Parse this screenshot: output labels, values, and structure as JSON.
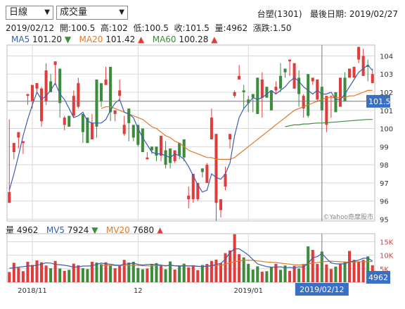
{
  "controls": {
    "period": "日線",
    "indicator": "成交量",
    "dropdown_glyph": "▼"
  },
  "header": {
    "stock": "台塑(1301)",
    "last_date_label": "最後日期:",
    "last_date": "2019/02/27"
  },
  "info": {
    "date": "2019/02/12",
    "open_label": "開:",
    "open": "100.5",
    "high_label": "高:",
    "high": "102",
    "low_label": "低:",
    "low": "100.5",
    "close_label": "收:",
    "close": "101.5",
    "vol_label": "量:",
    "vol": "4962",
    "chg_label": "漲跌:",
    "chg": "1.50"
  },
  "ma": {
    "ma5_label": "MA5",
    "ma5": "101.20",
    "ma5_arrow": "▼",
    "ma20_label": "MA20",
    "ma20": "101.42",
    "ma20_arrow": "▲",
    "ma60_label": "MA60",
    "ma60": "100.28",
    "ma60_arrow": "▲"
  },
  "vol_info": {
    "label": "量",
    "value": "4962",
    "mv5_label": "MV5",
    "mv5": "7924",
    "mv5_arrow": "▼",
    "mv20_label": "MV20",
    "mv20": "7680",
    "mv20_arrow": "▲"
  },
  "watermark": "©Yahoo奇摩股市",
  "cursor": {
    "price_tag": "101.5",
    "vol_tag": "4962",
    "date_tag": "2019/02/12"
  },
  "colors": {
    "up": "#e03c3c",
    "down": "#3d8b3d",
    "ma5": "#3a5fb0",
    "ma20": "#e07a2a",
    "ma60": "#3d8b3d",
    "tag_bg": "#3a6fc4",
    "grid": "#d8d8d8",
    "axis_red": "#e03c3c"
  },
  "chart_data": [
    {
      "type": "candlestick",
      "yticks": [
        "104",
        "103",
        "102",
        "101",
        "100",
        "99",
        "98",
        "97",
        "96",
        "95"
      ],
      "ylim": [
        94.9,
        104.6
      ],
      "xticks": [
        "2018/11",
        "12",
        "2019/01"
      ],
      "candles": [
        [
          95.9,
          96.5,
          100.5,
          99.2
        ],
        [
          98.7,
          99.2,
          98.6,
          98.3
        ],
        [
          99.5,
          99.8,
          99.5,
          98.9
        ],
        [
          99.2,
          99.3,
          98.8,
          98.6
        ],
        [
          101.8,
          101.9,
          101.5,
          101.3
        ],
        [
          101.5,
          102.4,
          101.3,
          101.1
        ],
        [
          102.2,
          102.5,
          102.4,
          102.0
        ],
        [
          100.4,
          102.2,
          102.3,
          100.1
        ],
        [
          101.5,
          103.2,
          103.6,
          101.3
        ],
        [
          102.6,
          102.0,
          103.0,
          102.0
        ],
        [
          103.5,
          103.7,
          103.6,
          102.4
        ],
        [
          103.3,
          101.4,
          102.8,
          100.6
        ],
        [
          100.2,
          100.6,
          100.7,
          99.9
        ],
        [
          100.7,
          100.1,
          100.4,
          100.7
        ],
        [
          100.7,
          101.8,
          102.1,
          100.6
        ],
        [
          101.2,
          102.5,
          102.8,
          101.1
        ],
        [
          100.8,
          99.8,
          100.7,
          99.2
        ],
        [
          100.6,
          99.2,
          99.5,
          99.6
        ],
        [
          99.4,
          100.3,
          100.8,
          100.0
        ],
        [
          102.7,
          100.1,
          101.9,
          99.5
        ],
        [
          102.5,
          101.5,
          101.5,
          101.2
        ],
        [
          102.4,
          102.7,
          103.4,
          102.5
        ],
        [
          103.4,
          100.9,
          102.4,
          100.4
        ],
        [
          100.8,
          101.0,
          101.0,
          100.4
        ],
        [
          101.8,
          102.1,
          102.7,
          101.5
        ],
        [
          99.7,
          100.2,
          100.7,
          99.6
        ],
        [
          101.1,
          100.3,
          101.1,
          99.3
        ],
        [
          100.2,
          99.5,
          99.8,
          99.3
        ],
        [
          100.2,
          99.1,
          99.3,
          99.0
        ],
        [
          100.0,
          98.7,
          98.8,
          99.1
        ],
        [
          98.3,
          98.4,
          98.7,
          98.3
        ],
        [
          99.0,
          98.8,
          98.8,
          98.6
        ],
        [
          99.0,
          98.5,
          98.3,
          98.2
        ],
        [
          98.5,
          99.6,
          99.5,
          98.2
        ],
        [
          98.8,
          98.0,
          99.3,
          97.8
        ],
        [
          98.9,
          98.1,
          98.4,
          97.8
        ],
        [
          98.2,
          98.8,
          98.7,
          98.1
        ],
        [
          99.2,
          98.5,
          98.9,
          98.3
        ],
        [
          99.4,
          98.4,
          98.8,
          98.2
        ],
        [
          96.1,
          96.3,
          96.8,
          95.6
        ],
        [
          96.1,
          97.5,
          97.3,
          95.9
        ],
        [
          96.1,
          97.0,
          97.0,
          96.0
        ],
        [
          97.8,
          97.6,
          97.5,
          97.3
        ],
        [
          97.0,
          98.0,
          98.1,
          97.6
        ],
        [
          99.4,
          100.6,
          101.1,
          99.4
        ],
        [
          95.9,
          99.7,
          99.5,
          94.9
        ],
        [
          95.5,
          96.1,
          96.1,
          95.1
        ],
        [
          96.8,
          97.5,
          97.9,
          96.6
        ],
        [
          99.4,
          99.7,
          99.7,
          98.9
        ],
        [
          101.8,
          102.0,
          102.1,
          101.7
        ],
        [
          102.7,
          102.9,
          103.5,
          102.7
        ],
        [
          102.1,
          102.0,
          102.4,
          101.1
        ],
        [
          101.6,
          101.4,
          101.8,
          100.9
        ],
        [
          101.9,
          101.7,
          101.5,
          100.9
        ],
        [
          102.8,
          100.8,
          101.2,
          101.0
        ],
        [
          101.7,
          102.7,
          103.1,
          100.6
        ],
        [
          102.3,
          101.7,
          101.7,
          101.8
        ],
        [
          102.1,
          101.0,
          101.3,
          101.3
        ],
        [
          102.1,
          102.3,
          102.6,
          101.9
        ],
        [
          102.9,
          102.2,
          103.6,
          102.0
        ],
        [
          103.3,
          103.1,
          102.8,
          102.8
        ],
        [
          103.7,
          103.8,
          103.2,
          102.9
        ],
        [
          102.2,
          103.6,
          103.5,
          102.2
        ],
        [
          102.8,
          101.9,
          103.2,
          101.2
        ],
        [
          101.1,
          101.8,
          101.9,
          100.6
        ],
        [
          103.0,
          100.7,
          102.6,
          100.6
        ],
        [
          102.6,
          102.8,
          102.6,
          102.4
        ],
        [
          101.6,
          102.7,
          102.6,
          101.5
        ],
        [
          102.3,
          101.0,
          101.5,
          101.1
        ],
        [
          100.2,
          101.8,
          101.2,
          99.8
        ],
        [
          101.8,
          101.8,
          101.7,
          100.6
        ],
        [
          102.0,
          100.9,
          101.8,
          100.9
        ],
        [
          101.2,
          102.8,
          102.4,
          102.0
        ],
        [
          102.8,
          101.5,
          103.1,
          102.4
        ],
        [
          102.8,
          103.3,
          102.9,
          103.1
        ],
        [
          102.8,
          103.4,
          102.4,
          103.3
        ],
        [
          103.8,
          104.5,
          104.4,
          103.6
        ],
        [
          102.9,
          104.0,
          104.4,
          103.8
        ],
        [
          103.5,
          103.4,
          103.8,
          102.6
        ],
        [
          102.5,
          103.0,
          103.3,
          102.7
        ]
      ],
      "ma5": [
        96.6,
        97.5,
        98.5,
        99.6,
        100.5,
        101.3,
        102.0,
        101.6,
        101.8,
        102.1,
        102.5,
        101.9,
        101.6,
        101.1,
        100.6,
        100.7,
        100.9,
        100.4,
        100.3,
        100.3,
        100.3,
        100.5,
        101.0,
        101.4,
        101.6,
        100.9,
        100.8,
        100.6,
        100.0,
        99.5,
        99.1,
        98.7,
        98.6,
        98.6,
        98.5,
        98.4,
        98.6,
        98.5,
        98.3,
        97.9,
        97.4,
        96.9,
        96.5,
        96.6,
        97.5,
        97.3,
        97.2,
        97.5,
        98.1,
        99.6,
        100.6,
        101.1,
        101.4,
        101.7,
        101.6,
        101.7,
        101.9,
        102.1,
        101.9,
        102.1,
        102.3,
        102.6,
        102.8,
        102.6,
        102.3,
        102.1,
        101.9,
        102.1,
        101.9,
        101.9,
        102.0,
        101.6,
        101.6,
        101.9,
        102.3,
        102.7,
        103.1,
        103.3,
        103.5,
        103.2
      ],
      "ma20": [
        null,
        null,
        null,
        null,
        null,
        null,
        null,
        null,
        null,
        null,
        null,
        null,
        null,
        null,
        null,
        null,
        null,
        null,
        null,
        null,
        101.1,
        101.2,
        101.2,
        101.1,
        101.0,
        100.9,
        100.8,
        100.7,
        100.6,
        100.5,
        100.3,
        100.1,
        100.0,
        99.8,
        99.6,
        99.5,
        99.3,
        99.2,
        99.0,
        98.8,
        98.7,
        98.6,
        98.5,
        98.4,
        98.4,
        98.3,
        98.3,
        98.3,
        98.3,
        98.4,
        98.6,
        98.8,
        99.0,
        99.2,
        99.4,
        99.6,
        99.8,
        100.0,
        100.2,
        100.4,
        100.6,
        100.8,
        101.0,
        101.1,
        101.2,
        101.3,
        101.4,
        101.5,
        101.6,
        101.7,
        101.7,
        101.7,
        101.7,
        101.7,
        101.8,
        101.8,
        101.9,
        102.0,
        102.1,
        102.1
      ],
      "ma60": [
        null,
        null,
        null,
        null,
        null,
        null,
        null,
        null,
        null,
        null,
        null,
        null,
        null,
        null,
        null,
        null,
        null,
        null,
        null,
        null,
        null,
        null,
        null,
        null,
        null,
        null,
        null,
        null,
        null,
        null,
        null,
        null,
        null,
        null,
        null,
        null,
        null,
        null,
        null,
        null,
        null,
        null,
        null,
        null,
        null,
        null,
        null,
        null,
        null,
        null,
        null,
        null,
        null,
        null,
        null,
        null,
        null,
        null,
        null,
        null,
        100.1,
        100.15,
        100.2,
        100.2,
        100.25,
        100.25,
        100.28,
        100.3,
        100.3,
        100.32,
        100.34,
        100.36,
        100.38,
        100.4,
        100.42,
        100.44,
        100.46,
        100.48,
        100.5,
        100.5
      ]
    },
    {
      "type": "bar",
      "yticks": [
        "15K",
        "10K",
        "5K"
      ],
      "ylim": [
        0,
        18000
      ],
      "volumes": [
        3800,
        7200,
        5400,
        4100,
        7600,
        6400,
        8100,
        7400,
        6200,
        5200,
        7900,
        5100,
        4200,
        4600,
        6900,
        6300,
        5200,
        4900,
        7600,
        7300,
        6700,
        7400,
        6300,
        5200,
        6100,
        8300,
        7300,
        7600,
        5300,
        4800,
        5100,
        6600,
        7100,
        6300,
        4800,
        7700,
        4700,
        6200,
        6900,
        5500,
        6300,
        4500,
        6400,
        6800,
        7900,
        8400,
        7100,
        10800,
        11800,
        17800,
        10400,
        9200,
        6800,
        4700,
        5900,
        3900,
        4100,
        5600,
        6800,
        4600,
        6200,
        4200,
        6100,
        5100,
        6800,
        13300,
        12000,
        6800,
        11400,
        6600,
        4900,
        5800,
        6800,
        7700,
        11600,
        8300,
        7500,
        8300,
        9600,
        6300
      ],
      "mv5": [
        5200,
        5400,
        5600,
        5800,
        6000,
        6100,
        6300,
        6700,
        7200,
        7100,
        6600,
        6500,
        6300,
        6000,
        5600,
        5700,
        6000,
        6000,
        6100,
        6600,
        7100,
        6800,
        6700,
        6400,
        6300,
        6700,
        6800,
        7100,
        6600,
        6400,
        6600,
        6700,
        6500,
        6400,
        6000,
        6400,
        6100,
        6000,
        6100,
        6000,
        6100,
        5900,
        5800,
        5900,
        6100,
        6600,
        7000,
        8500,
        11000,
        12400,
        12400,
        11300,
        10100,
        8400,
        6800,
        6300,
        5800,
        5600,
        5600,
        5700,
        5400,
        5500,
        5300,
        5700,
        5600,
        7000,
        9100,
        9500,
        10700,
        8800,
        7200,
        6800,
        6800,
        6800,
        7600,
        7800,
        8200,
        8900,
        8900,
        7900
      ],
      "mv20": [
        null,
        null,
        null,
        null,
        null,
        null,
        null,
        null,
        null,
        null,
        null,
        null,
        null,
        null,
        null,
        null,
        null,
        null,
        null,
        null,
        6300,
        6300,
        6300,
        6200,
        6200,
        6200,
        6200,
        6300,
        6200,
        6100,
        6100,
        6100,
        6200,
        6200,
        6200,
        6200,
        6100,
        6100,
        6200,
        6100,
        6000,
        5900,
        5900,
        6000,
        6100,
        6200,
        6300,
        6700,
        7200,
        7600,
        7900,
        8100,
        8200,
        8100,
        7900,
        7700,
        7500,
        7400,
        7300,
        7100,
        6900,
        6700,
        6500,
        6400,
        6500,
        6800,
        7100,
        7300,
        7600,
        7700,
        7800,
        7700,
        7600,
        7500,
        7500,
        7500,
        7600,
        7600,
        7700,
        7680
      ]
    }
  ]
}
